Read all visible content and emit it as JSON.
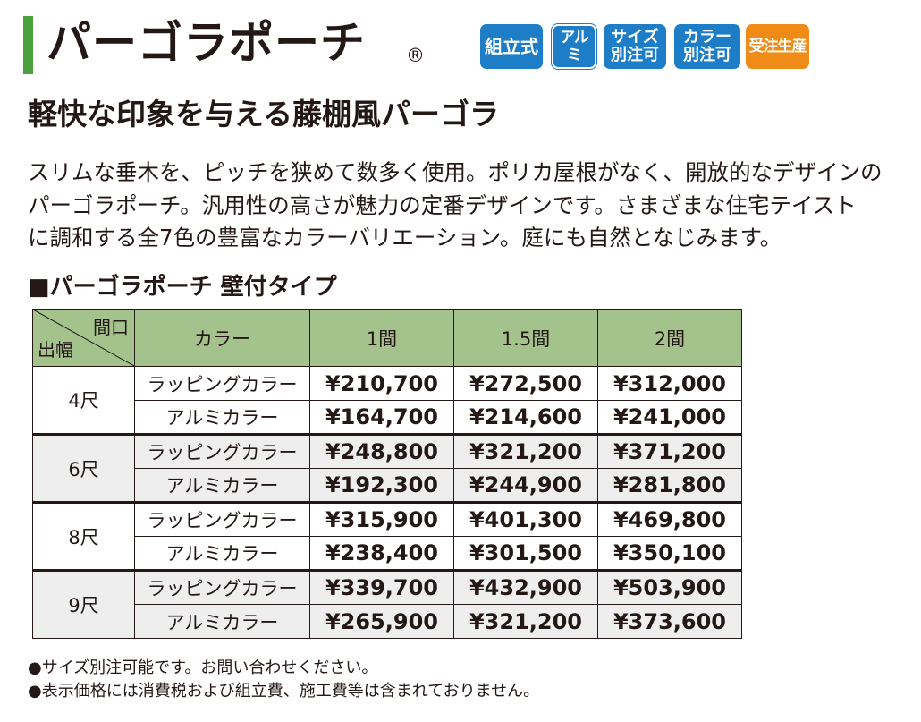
{
  "header": {
    "title": "パーゴラポーチ",
    "registered": "®",
    "badges": [
      {
        "label": "組立式",
        "color": "#1d7dc6"
      },
      {
        "label": "アルミ",
        "color": "#1d7dc6"
      },
      {
        "label": "サイズ\n別注可",
        "color": "#1d7dc6"
      },
      {
        "label": "カラー\n別注可",
        "color": "#1d7dc6"
      },
      {
        "label": "受注生産",
        "color": "#ef8c17"
      }
    ]
  },
  "subtitle": "軽快な印象を与える藤棚風パーゴラ",
  "description": [
    "スリムな垂木を、ピッチを狭めて数多く使用。ポリカ屋根がなく、開放的なデザインの",
    "パーゴラポーチ。汎用性の高さが魅力の定番デザインです。さまざまな住宅テイスト",
    "に調和する全7色の豊富なカラーバリエーション。庭にも自然となじみます。"
  ],
  "section_title": "■パーゴラポーチ 壁付タイプ",
  "table": {
    "corner_top": "間口",
    "corner_bottom": "出幅",
    "headers": [
      "カラー",
      "1間",
      "1.5間",
      "2間"
    ],
    "header_color": "#a3c28c",
    "groups": [
      {
        "size": "4尺",
        "rows": [
          {
            "color": "ラッピングカラー",
            "prices": [
              "¥210,700",
              "¥272,500",
              "¥312,000"
            ]
          },
          {
            "color": "アルミカラー",
            "prices": [
              "¥164,700",
              "¥214,600",
              "¥241,000"
            ]
          }
        ]
      },
      {
        "size": "6尺",
        "rows": [
          {
            "color": "ラッピングカラー",
            "prices": [
              "¥248,800",
              "¥321,200",
              "¥371,200"
            ]
          },
          {
            "color": "アルミカラー",
            "prices": [
              "¥192,300",
              "¥244,900",
              "¥281,800"
            ]
          }
        ]
      },
      {
        "size": "8尺",
        "rows": [
          {
            "color": "ラッピングカラー",
            "prices": [
              "¥315,900",
              "¥401,300",
              "¥469,800"
            ]
          },
          {
            "color": "アルミカラー",
            "prices": [
              "¥238,400",
              "¥301,500",
              "¥350,100"
            ]
          }
        ]
      },
      {
        "size": "9尺",
        "rows": [
          {
            "color": "ラッピングカラー",
            "prices": [
              "¥339,700",
              "¥432,900",
              "¥503,900"
            ]
          },
          {
            "color": "アルミカラー",
            "prices": [
              "¥265,900",
              "¥321,200",
              "¥373,600"
            ]
          }
        ]
      }
    ]
  },
  "notes": [
    "●サイズ別注可能です。お問い合わせください。",
    "●表示価格には消費税および組立費、施工費等は含まれておりません。"
  ],
  "accent_green": "#4ba13c"
}
